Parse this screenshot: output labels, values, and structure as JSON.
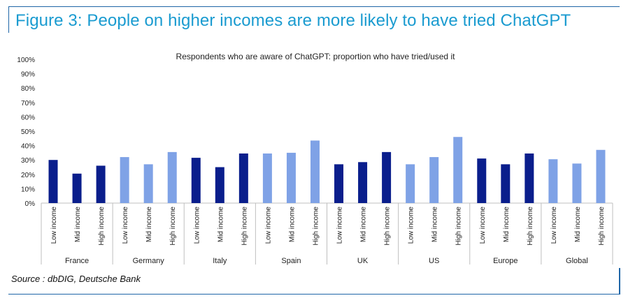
{
  "figure_title": "Figure 3: People on higher incomes are more likely to have tried ChatGPT",
  "source": "Source : dbDIG, Deutsche Bank",
  "colors": {
    "accent": "#1a9bd0",
    "frame": "#1f66a7",
    "dark_bar": "#0a1e8c",
    "light_bar": "#7fa2e6"
  },
  "chart_data": {
    "type": "bar",
    "title": "Respondents who are aware of ChatGPT: proportion who have tried/used it",
    "xlabel": "",
    "ylabel": "",
    "ylim": [
      0,
      100
    ],
    "yticks": [
      "0%",
      "10%",
      "20%",
      "30%",
      "40%",
      "50%",
      "60%",
      "70%",
      "80%",
      "90%",
      "100%"
    ],
    "grid": false,
    "legend": "none",
    "sub_categories": [
      "Low income",
      "Mid income",
      "High income"
    ],
    "groups": [
      {
        "name": "France",
        "values": [
          30,
          20.5,
          26
        ],
        "shade": "dark"
      },
      {
        "name": "Germany",
        "values": [
          32,
          27,
          35.5
        ],
        "shade": "light"
      },
      {
        "name": "Italy",
        "values": [
          31.5,
          25,
          34.5
        ],
        "shade": "dark"
      },
      {
        "name": "Spain",
        "values": [
          34.5,
          35,
          43.5
        ],
        "shade": "light"
      },
      {
        "name": "UK",
        "values": [
          27,
          28.5,
          35.5
        ],
        "shade": "dark"
      },
      {
        "name": "US",
        "values": [
          27,
          32,
          46
        ],
        "shade": "light"
      },
      {
        "name": "Europe",
        "values": [
          31,
          27,
          34.5
        ],
        "shade": "dark"
      },
      {
        "name": "Global",
        "values": [
          30.5,
          27.5,
          37
        ],
        "shade": "light"
      }
    ]
  }
}
